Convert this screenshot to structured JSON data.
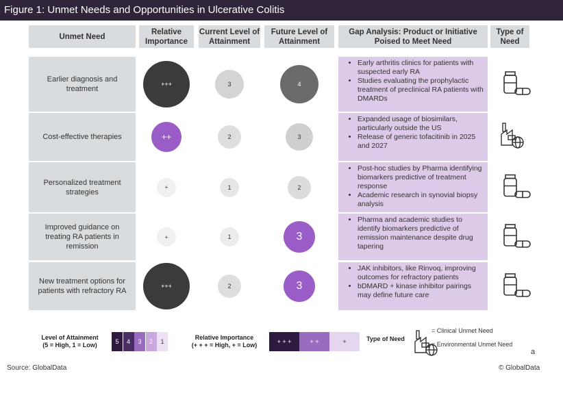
{
  "title": "Figure 1: Unmet Needs and Opportunities in Ulcerative Colitis",
  "table": {
    "headers": [
      "Unmet Need",
      "Relative Importance",
      "Current Level of Attainment",
      "Future Level of Attainment",
      "Gap Analysis: Product or Initiative Poised to Meet Need",
      "Type of Need"
    ],
    "rows": [
      {
        "need": "Earlier diagnosis and treatment",
        "importance": "+++",
        "current": "3",
        "future": "4",
        "gap": [
          "Early arthritis clinics for patients with suspected early RA",
          "Studies evaluating the prophylactic treatment of preclinical RA patients with DMARDs"
        ]
      },
      {
        "need": "Cost-effective therapies",
        "importance": "++",
        "current": "2",
        "future": "3",
        "gap": [
          "Expanded usage of biosimilars, particularly outside the US",
          "Release of generic tofacitinib in 2025 and 2027"
        ]
      },
      {
        "need": "Personalized treatment strategies",
        "importance": "+",
        "current": "1",
        "future": "2",
        "gap": [
          "Post-hoc studies by Pharma identifying biomarkers predictive of treatment response",
          "Academic research in  synovial biopsy analysis"
        ]
      },
      {
        "need": "Improved guidance on treating RA patients in remission",
        "importance": "+",
        "current": "1",
        "future": "3",
        "gap": [
          "Pharma and academic studies to identify biomarkers predictive of remission maintenance despite drug tapering"
        ]
      },
      {
        "need": "New treatment options for patients with refractory RA",
        "importance": "+++",
        "current": "2",
        "future": "3",
        "gap": [
          "JAK inhibitors, like Rinvoq, improving outcomes for refractory patients",
          "bDMARD + kinase inhibitor pairings may define future care"
        ]
      }
    ]
  },
  "legend": {
    "attainment_label": "Level of Attainment",
    "attainment_note": "(5 = High, 1 = Low)",
    "attainment_levels": [
      "5",
      "4",
      "3",
      "2",
      "1"
    ],
    "importance_label": "Relative Importance",
    "importance_note": "(+ + + = High, + = Low)",
    "importance_levels": [
      "+ + +",
      "+ +",
      "+"
    ],
    "type_label": "Type of Need",
    "clinical": "= Clinical Unmet Need",
    "environmental": "= Environmental Unmet Need",
    "mark": "a"
  },
  "footer": {
    "source": "Source: GlobalData",
    "copyright": "© GlobalData"
  }
}
